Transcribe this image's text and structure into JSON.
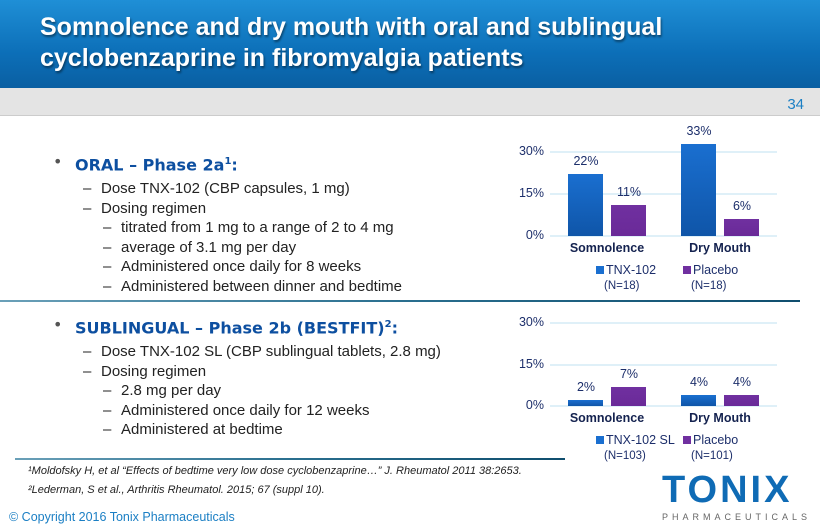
{
  "title": "Somnolence and dry mouth with oral and sublingual cyclobenzaprine in fibromyalgia patients",
  "page_number": "34",
  "oral": {
    "heading": "ORAL – Phase 2a",
    "sup": "1",
    "colon": ":",
    "items": [
      {
        "level": 2,
        "text": "Dose TNX-102 (CBP capsules, 1 mg)"
      },
      {
        "level": 2,
        "text": "Dosing regimen"
      },
      {
        "level": 3,
        "text": "titrated from 1 mg to a range of 2 to 4 mg"
      },
      {
        "level": 3,
        "text": "average of 3.1 mg per day"
      },
      {
        "level": 3,
        "text": "Administered once daily for 8 weeks"
      },
      {
        "level": 3,
        "text": "Administered between dinner and bedtime"
      }
    ]
  },
  "sublingual": {
    "heading": "SUBLINGUAL – Phase 2b (BESTFIT)",
    "sup": "2",
    "colon": ":",
    "items": [
      {
        "level": 2,
        "text": "Dose TNX-102 SL (CBP sublingual tablets, 2.8 mg)"
      },
      {
        "level": 2,
        "text": "Dosing regimen"
      },
      {
        "level": 3,
        "text": "2.8 mg per day"
      },
      {
        "level": 3,
        "text": "Administered once daily for 12 weeks"
      },
      {
        "level": 3,
        "text": "Administered at bedtime"
      }
    ]
  },
  "chart_data": [
    {
      "type": "bar",
      "categories": [
        "Somnolence",
        "Dry Mouth"
      ],
      "ylim": [
        0,
        30
      ],
      "yticks": [
        "0%",
        "15%",
        "30%"
      ],
      "series": [
        {
          "name": "TNX-102",
          "n": "(N=18)",
          "color": "#1a6fd0",
          "values": [
            22,
            33
          ],
          "labels": [
            "22%",
            "33%"
          ]
        },
        {
          "name": "Placebo",
          "n": "(N=18)",
          "color": "#7030a0",
          "values": [
            11,
            6
          ],
          "labels": [
            "11%",
            "6%"
          ]
        }
      ]
    },
    {
      "type": "bar",
      "categories": [
        "Somnolence",
        "Dry Mouth"
      ],
      "ylim": [
        0,
        30
      ],
      "yticks": [
        "0%",
        "15%",
        "30%"
      ],
      "series": [
        {
          "name": "TNX-102 SL",
          "n": "(N=103)",
          "color": "#1a6fd0",
          "values": [
            2,
            4
          ],
          "labels": [
            "2%",
            "4%"
          ]
        },
        {
          "name": "Placebo",
          "n": "(N=101)",
          "color": "#7030a0",
          "values": [
            7,
            4
          ],
          "labels": [
            "7%",
            "4%"
          ]
        }
      ]
    }
  ],
  "footnotes": [
    "¹Moldofsky H, et al “Effects of bedtime very low dose cyclobenzaprine…” J. Rheumatol 2011 38:2653.",
    "²Lederman, S et al., Arthritis Rheumatol. 2015; 67 (suppl 10)."
  ],
  "copyright": "© Copyright 2016 Tonix Pharmaceuticals",
  "logo": {
    "word": "TONIX",
    "sub": "PHARMACEUTICALS"
  }
}
